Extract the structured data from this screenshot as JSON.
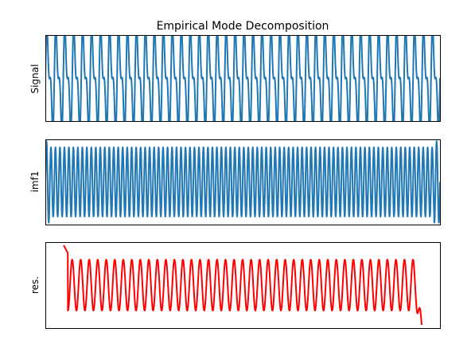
{
  "chart_data": {
    "type": "line",
    "title": "Empirical Mode Decomposition",
    "panels": [
      {
        "ylabel": "Signal",
        "color": "#1f77b4",
        "description_values": {
          "components": [
            {
              "cycles": 44,
              "amplitude": 1.0
            },
            {
              "cycles": 88,
              "amplitude": 0.55
            }
          ]
        }
      },
      {
        "ylabel": "imf1",
        "color": "#1f77b4",
        "description_values": {
          "components": [
            {
              "cycles": 88,
              "amplitude": 0.7
            }
          ]
        }
      },
      {
        "ylabel": "res.",
        "color": "#ff0000",
        "description_values": {
          "components": [
            {
              "cycles": 44,
              "amplitude": 0.85
            }
          ]
        }
      }
    ],
    "xticks": false,
    "yticks": false,
    "grid": false
  }
}
